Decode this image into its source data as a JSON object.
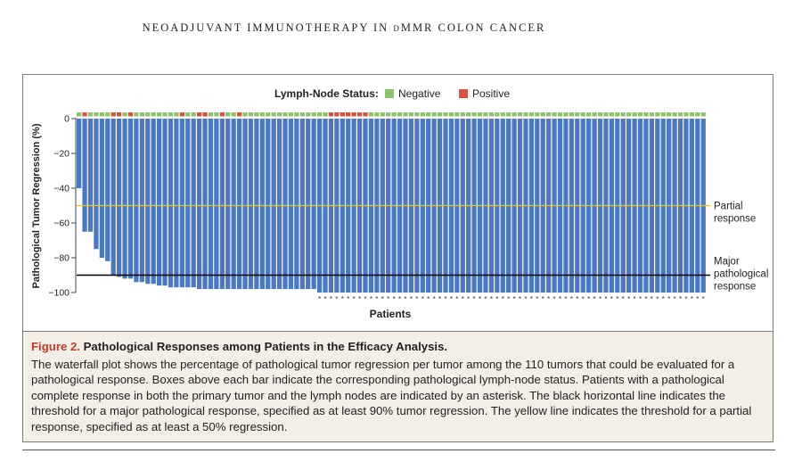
{
  "running_head": "NEOADJUVANT IMMUNOTHERAPY IN dMMR COLON CANCER",
  "chart_data": {
    "type": "bar",
    "title": "",
    "xlabel": "Patients",
    "ylabel": "Pathological Tumor Regression (%)",
    "ylim": [
      -100,
      0
    ],
    "yticks": [
      0,
      -20,
      -40,
      -60,
      -80,
      -100
    ],
    "ytick_labels": [
      "0",
      "−20",
      "−40",
      "−60",
      "−80",
      "−100"
    ],
    "grid": false,
    "legend": {
      "title": "Lymph-Node Status:",
      "placement": "top-center",
      "entries": [
        {
          "label": "Negative",
          "color": "#8dc26f"
        },
        {
          "label": "Positive",
          "color": "#d9513f"
        }
      ]
    },
    "bar_color": "#4a78c2",
    "values": [
      -40,
      -65,
      -65,
      -75,
      -80,
      -82,
      -90,
      -91,
      -92,
      -92,
      -94,
      -94,
      -95,
      -95,
      -96,
      -96,
      -97,
      -97,
      -97,
      -97,
      -97,
      -98,
      -98,
      -98,
      -98,
      -98,
      -98,
      -98,
      -98,
      -98,
      -98,
      -98,
      -98,
      -98,
      -98,
      -98,
      -98,
      -98,
      -98,
      -98,
      -98,
      -98,
      -100,
      -100,
      -100,
      -100,
      -100,
      -100,
      -100,
      -100,
      -100,
      -100,
      -100,
      -100,
      -100,
      -100,
      -100,
      -100,
      -100,
      -100,
      -100,
      -100,
      -100,
      -100,
      -100,
      -100,
      -100,
      -100,
      -100,
      -100,
      -100,
      -100,
      -100,
      -100,
      -100,
      -100,
      -100,
      -100,
      -100,
      -100,
      -100,
      -100,
      -100,
      -100,
      -100,
      -100,
      -100,
      -100,
      -100,
      -100,
      -100,
      -100,
      -100,
      -100,
      -100,
      -100,
      -100,
      -100,
      -100,
      -100,
      -100,
      -100,
      -100,
      -100,
      -100,
      -100,
      -100,
      -100,
      -100,
      -100
    ],
    "lymph_node_status": [
      "N",
      "P",
      "N",
      "N",
      "N",
      "N",
      "P",
      "P",
      "N",
      "P",
      "N",
      "N",
      "N",
      "N",
      "N",
      "N",
      "N",
      "N",
      "P",
      "N",
      "N",
      "P",
      "P",
      "N",
      "N",
      "P",
      "N",
      "N",
      "P",
      "N",
      "N",
      "N",
      "N",
      "N",
      "N",
      "N",
      "N",
      "N",
      "N",
      "N",
      "N",
      "N",
      "N",
      "N",
      "P",
      "P",
      "P",
      "P",
      "P",
      "P",
      "P",
      "N",
      "N",
      "N",
      "N",
      "N",
      "N",
      "N",
      "N",
      "N",
      "N",
      "N",
      "N",
      "N",
      "N",
      "N",
      "N",
      "N",
      "N",
      "N",
      "N",
      "N",
      "N",
      "N",
      "N",
      "N",
      "N",
      "N",
      "N",
      "N",
      "N",
      "N",
      "N",
      "N",
      "N",
      "N",
      "N",
      "N",
      "N",
      "N",
      "N",
      "N",
      "N",
      "N",
      "N",
      "N",
      "N",
      "N",
      "N",
      "N",
      "N",
      "N",
      "N",
      "N",
      "N",
      "N",
      "N",
      "N",
      "N",
      "N"
    ],
    "complete_response_from_index": 42,
    "asterisk": "*",
    "reference_lines": [
      {
        "value": -50,
        "color": "#f0c419",
        "label_lines": [
          "Partial",
          "response"
        ]
      },
      {
        "value": -90,
        "color": "#000000",
        "label_lines": [
          "Major",
          "pathological",
          "response"
        ]
      }
    ]
  },
  "caption": {
    "label": "Figure 2.",
    "title": "Pathological Responses among Patients in the Efficacy Analysis.",
    "text": "The waterfall plot shows the percentage of pathological tumor regression per tumor among the 110 tumors that could be evaluated for a pathological response. Boxes above each bar indicate the corresponding pathological lymph-node status. Patients with a pathological complete response in both the primary tumor and the lymph nodes are indicated by an asterisk. The black horizontal line indicates the threshold for a major pathological response, specified as at least 90% tumor regression. The yellow line indicates the threshold for a partial response, specified as at least a 50% regression."
  }
}
